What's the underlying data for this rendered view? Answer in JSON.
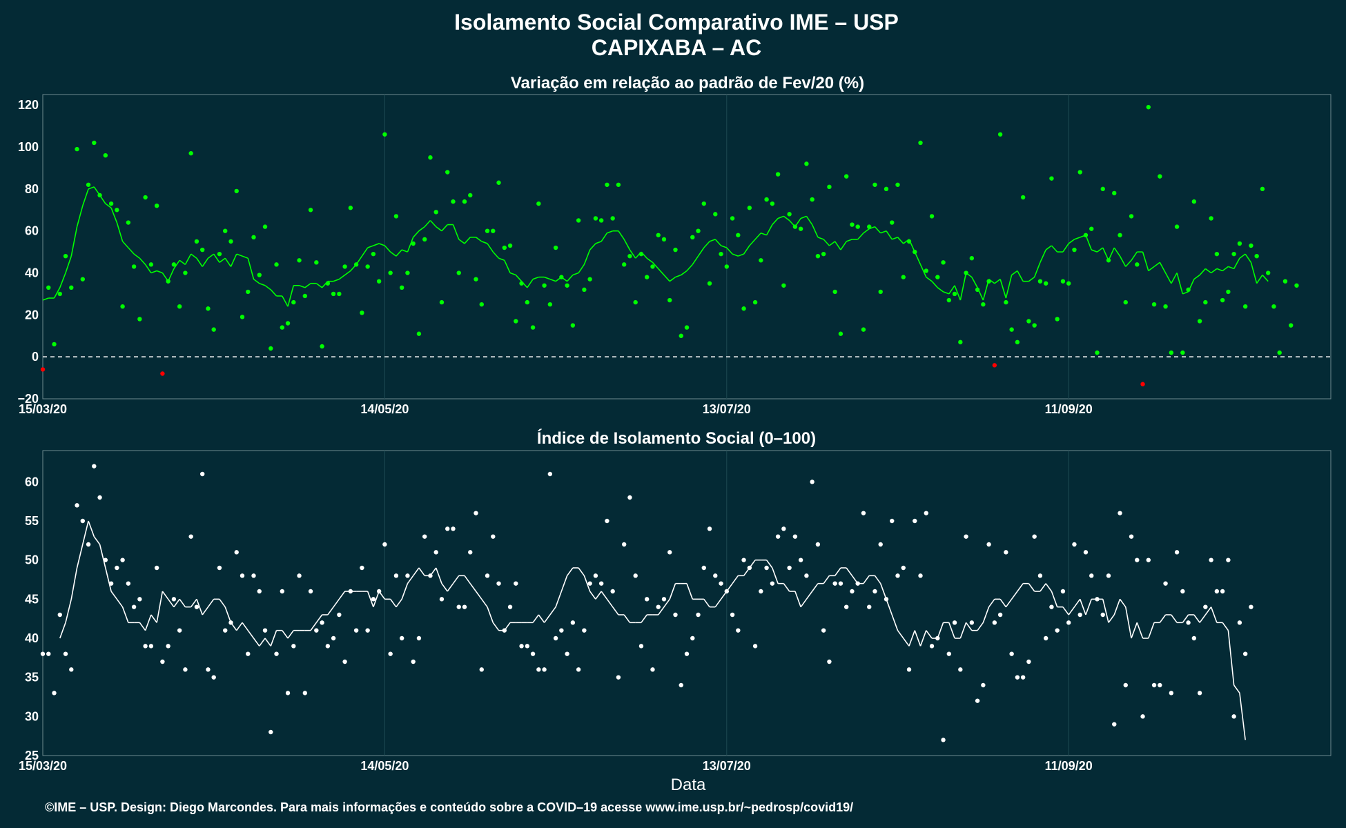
{
  "title_line1": "Isolamento Social Comparativo IME – USP",
  "title_line2": "CAPIXABA – AC",
  "xlabel": "Data",
  "footer": "©IME – USP. Design: Diego Marcondes. Para mais informações e conteúdo sobre a COVID–19 acesse www.ime.usp.br/~pedrosp/covid19/",
  "colors": {
    "background": "#042a35",
    "positive": "#00ff00",
    "negative": "#ff0000",
    "index": "#ffffff",
    "frame": "#6e8a8e",
    "grid": "#1e4a52"
  },
  "chart_data": [
    {
      "type": "scatter",
      "title": "Variação em relação ao padrão de Fev/20 (%)",
      "x_tick_labels": [
        "15/03/20",
        "14/05/20",
        "13/07/20",
        "11/09/20"
      ],
      "y_tick_labels": [
        "−20",
        "0",
        "20",
        "40",
        "60",
        "80",
        "100",
        "120"
      ],
      "ylim": [
        -20,
        125
      ],
      "xlim_days": [
        0,
        226
      ],
      "grid": true,
      "reference_line": 0,
      "points": [
        -6,
        33,
        6,
        30,
        48,
        33,
        99,
        37,
        82,
        102,
        77,
        96,
        73,
        70,
        24,
        64,
        43,
        18,
        76,
        44,
        72,
        -8,
        36,
        44,
        24,
        40,
        97,
        55,
        51,
        23,
        13,
        49,
        60,
        55,
        79,
        19,
        31,
        57,
        39,
        62,
        4,
        44,
        14,
        16,
        26,
        46,
        29,
        70,
        45,
        5,
        35,
        30,
        30,
        43,
        71,
        44,
        21,
        43,
        49,
        36,
        106,
        40,
        67,
        33,
        40,
        54,
        11,
        56,
        95,
        69,
        26,
        88,
        74,
        40,
        74,
        77,
        37,
        25,
        60,
        60,
        83,
        52,
        53,
        17,
        35,
        26,
        14,
        73,
        34,
        25,
        52,
        38,
        34,
        15,
        65,
        32,
        37,
        66,
        65,
        82,
        66,
        82,
        44,
        48,
        26,
        49,
        38,
        43,
        58,
        56,
        27,
        51,
        10,
        14,
        57,
        60,
        73,
        35,
        68,
        49,
        43,
        66,
        58,
        23,
        71,
        26,
        46,
        75,
        73,
        87,
        34,
        68,
        62,
        61,
        92,
        75,
        48,
        49,
        81,
        31,
        11,
        86,
        63,
        62,
        13,
        62,
        82,
        31,
        80,
        64,
        82,
        38,
        55,
        50,
        102,
        41,
        67,
        38,
        45,
        27,
        30,
        7,
        40,
        47,
        32,
        25,
        36,
        -4,
        106,
        26,
        13,
        7,
        76,
        17,
        15,
        36,
        35,
        85,
        18,
        36,
        35,
        51,
        88,
        58,
        61,
        2,
        80,
        46,
        78,
        58,
        26,
        67,
        44,
        -13,
        119,
        25,
        86,
        24,
        2,
        62,
        2,
        32,
        74,
        17,
        26,
        66,
        49,
        27,
        31,
        49,
        54,
        24,
        53,
        48,
        80,
        40,
        24,
        2,
        36,
        15,
        34
      ],
      "rolling_mean": [
        27,
        28,
        28,
        33,
        40,
        48,
        62,
        72,
        80,
        81,
        77,
        73,
        71,
        64,
        55,
        52,
        49,
        47,
        44,
        40,
        41,
        40,
        36,
        42,
        46,
        44,
        49,
        47,
        43,
        47,
        49,
        45,
        47,
        43,
        49,
        48,
        47,
        37,
        35,
        34,
        32,
        29,
        29,
        24,
        34,
        34,
        33,
        35,
        35,
        33,
        36,
        36,
        37,
        39,
        41,
        44,
        48,
        52,
        53,
        54,
        53,
        50,
        48,
        51,
        50,
        57,
        60,
        62,
        65,
        62,
        60,
        63,
        63,
        56,
        54,
        57,
        57,
        55,
        54,
        50,
        47,
        46,
        40,
        39,
        36,
        33,
        37,
        38,
        38,
        37,
        36,
        38,
        36,
        39,
        40,
        44,
        51,
        54,
        55,
        59,
        60,
        60,
        56,
        51,
        47,
        50,
        47,
        45,
        42,
        39,
        36,
        38,
        39,
        41,
        44,
        48,
        52,
        55,
        56,
        53,
        52,
        49,
        48,
        49,
        53,
        56,
        59,
        58,
        63,
        66,
        67,
        65,
        62,
        66,
        67,
        63,
        57,
        56,
        53,
        55,
        51,
        55,
        56,
        56,
        59,
        61,
        62,
        59,
        60,
        56,
        57,
        54,
        56,
        50,
        44,
        38,
        36,
        33,
        31,
        30,
        34,
        27,
        40,
        38,
        33,
        27,
        37,
        35,
        37,
        28,
        39,
        41,
        36,
        36,
        38,
        45,
        51,
        53,
        50,
        50,
        54,
        56,
        57,
        58,
        51,
        50,
        52,
        46,
        52,
        48,
        43,
        46,
        50,
        50,
        41,
        43,
        45,
        40,
        35,
        40,
        30,
        31,
        37,
        39,
        42,
        40,
        42,
        41,
        43,
        42,
        47,
        49,
        45,
        35,
        39,
        36
      ]
    },
    {
      "type": "scatter",
      "title": "Índice de Isolamento Social (0–100)",
      "x_tick_labels": [
        "15/03/20",
        "14/05/20",
        "13/07/20",
        "11/09/20"
      ],
      "y_tick_labels": [
        "25",
        "30",
        "35",
        "40",
        "45",
        "50",
        "55",
        "60"
      ],
      "ylim": [
        25,
        64
      ],
      "xlim_days": [
        0,
        226
      ],
      "grid": true,
      "points": [
        38,
        38,
        33,
        43,
        38,
        36,
        57,
        55,
        52,
        62,
        58,
        50,
        47,
        49,
        50,
        47,
        44,
        45,
        39,
        39,
        49,
        37,
        39,
        45,
        41,
        36,
        53,
        44,
        61,
        36,
        35,
        49,
        41,
        42,
        51,
        48,
        38,
        48,
        46,
        41,
        28,
        38,
        46,
        33,
        39,
        48,
        33,
        46,
        41,
        42,
        39,
        40,
        43,
        37,
        46,
        41,
        49,
        41,
        45,
        46,
        52,
        38,
        48,
        40,
        48,
        37,
        40,
        53,
        48,
        51,
        45,
        54,
        54,
        44,
        44,
        51,
        56,
        36,
        48,
        53,
        47,
        41,
        44,
        47,
        39,
        39,
        38,
        36,
        36,
        61,
        40,
        41,
        38,
        42,
        36,
        41,
        47,
        48,
        47,
        55,
        46,
        35,
        52,
        58,
        48,
        39,
        45,
        36,
        44,
        45,
        51,
        43,
        34,
        38,
        40,
        43,
        49,
        54,
        48,
        47,
        46,
        43,
        41,
        50,
        49,
        39,
        46,
        49,
        47,
        53,
        54,
        49,
        53,
        50,
        48,
        60,
        52,
        41,
        37,
        47,
        47,
        44,
        46,
        47,
        56,
        44,
        46,
        52,
        45,
        55,
        48,
        49,
        36,
        55,
        48,
        56,
        39,
        40,
        27,
        38,
        42,
        36,
        53,
        42,
        32,
        34,
        52,
        42,
        43,
        51,
        38,
        35,
        35,
        37,
        53,
        48,
        40,
        44,
        41,
        46,
        42,
        52,
        43,
        51,
        48,
        45,
        43,
        48,
        29,
        56,
        34,
        53,
        50,
        30,
        50,
        34,
        34,
        47,
        33,
        51,
        46,
        42,
        40,
        33,
        44,
        50,
        46,
        46,
        50,
        30,
        42,
        38,
        44
      ],
      "rolling_mean": [
        null,
        null,
        null,
        40,
        42,
        45,
        49,
        52,
        55,
        53,
        52,
        49,
        46,
        45,
        44,
        42,
        42,
        42,
        41,
        43,
        42,
        46,
        45,
        44,
        45,
        44,
        44,
        45,
        43,
        44,
        45,
        45,
        44,
        42,
        41,
        42,
        41,
        40,
        39,
        40,
        39,
        41,
        41,
        40,
        41,
        41,
        41,
        41,
        42,
        43,
        43,
        44,
        45,
        46,
        46,
        46,
        46,
        46,
        44,
        46,
        45,
        45,
        44,
        45,
        47,
        48,
        49,
        48,
        48,
        49,
        47,
        46,
        47,
        48,
        48,
        47,
        46,
        45,
        44,
        42,
        41,
        41,
        42,
        42,
        42,
        42,
        42,
        43,
        42,
        43,
        44,
        46,
        48,
        49,
        49,
        48,
        46,
        45,
        46,
        45,
        44,
        43,
        43,
        42,
        42,
        42,
        43,
        43,
        43,
        44,
        45,
        47,
        47,
        47,
        45,
        45,
        45,
        44,
        44,
        45,
        46,
        47,
        48,
        48,
        49,
        50,
        50,
        50,
        49,
        47,
        47,
        46,
        46,
        44,
        45,
        46,
        47,
        47,
        48,
        48,
        49,
        49,
        48,
        47,
        47,
        48,
        48,
        47,
        45,
        43,
        41,
        40,
        39,
        41,
        39,
        41,
        40,
        40,
        42,
        42,
        40,
        40,
        42,
        41,
        41,
        42,
        44,
        45,
        45,
        44,
        45,
        46,
        47,
        47,
        46,
        46,
        47,
        46,
        44,
        44,
        43,
        44,
        45,
        43,
        45,
        45,
        45,
        42,
        43,
        45,
        44,
        40,
        42,
        40,
        40,
        42,
        42,
        43,
        43,
        42,
        42,
        43,
        43,
        42,
        43,
        44,
        42,
        42,
        41,
        34,
        33,
        27
      ]
    }
  ]
}
